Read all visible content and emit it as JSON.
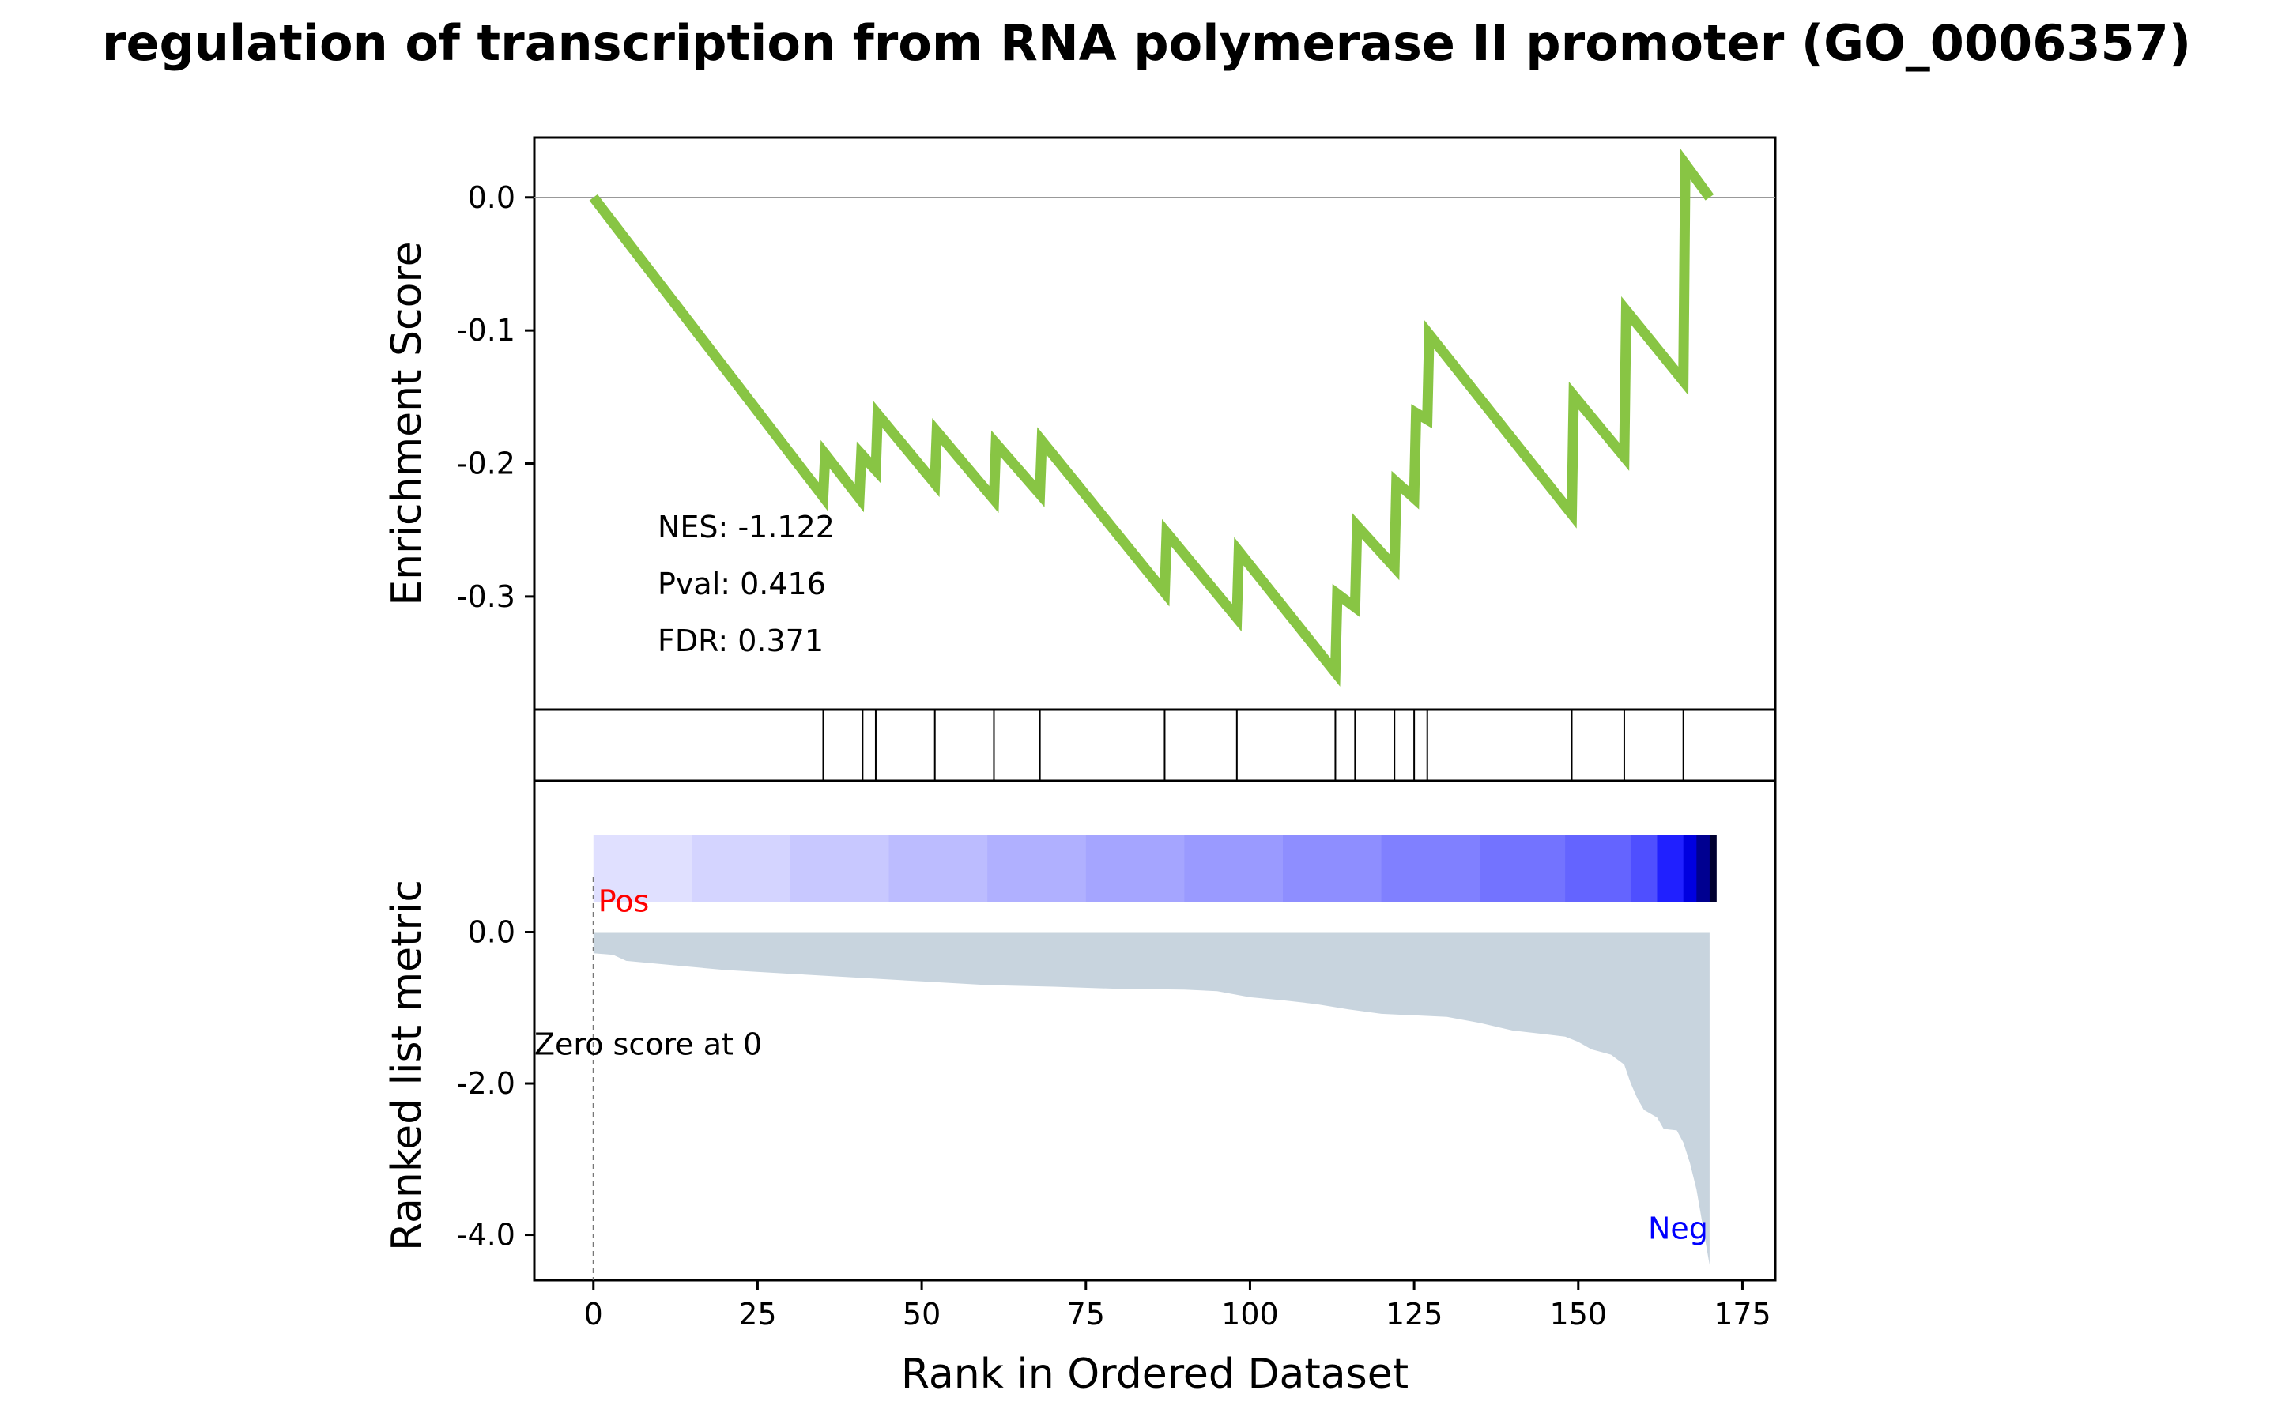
{
  "title": "regulation of transcription from RNA polymerase II promoter (GO_0006357)",
  "chart_data": [
    {
      "type": "line",
      "panel": "enrichment",
      "ylabel": "Enrichment Score",
      "ylim": [
        -0.385,
        0.045
      ],
      "yticks": [
        0.0,
        -0.1,
        -0.2,
        -0.3
      ],
      "ytick_labels": [
        "0.0",
        "-0.1",
        "-0.2",
        "-0.3"
      ],
      "zero_line": true,
      "color": "#88c544",
      "x": [
        0,
        35,
        35.3,
        40.5,
        40.8,
        43,
        43.3,
        52,
        52.3,
        61,
        61.3,
        68,
        68.3,
        87,
        87.3,
        98,
        98.3,
        113,
        113.3,
        116,
        116.3,
        122,
        122.3,
        125,
        125.3,
        127,
        127.3,
        149,
        149.3,
        157,
        157.3,
        166,
        166.3,
        170
      ],
      "y": [
        0.0,
        -0.225,
        -0.193,
        -0.226,
        -0.193,
        -0.205,
        -0.163,
        -0.215,
        -0.176,
        -0.227,
        -0.185,
        -0.223,
        -0.183,
        -0.297,
        -0.252,
        -0.316,
        -0.266,
        -0.357,
        -0.298,
        -0.308,
        -0.247,
        -0.278,
        -0.214,
        -0.226,
        -0.162,
        -0.167,
        -0.103,
        -0.238,
        -0.149,
        -0.195,
        -0.085,
        -0.138,
        0.025,
        0.0
      ],
      "annotations": [
        "NES: -1.122",
        "Pval: 0.416",
        "FDR: 0.371"
      ]
    },
    {
      "type": "hits",
      "panel": "gene-hits",
      "x": [
        35,
        41,
        43,
        52,
        61,
        68,
        87,
        98,
        113,
        116,
        122,
        125,
        127,
        149,
        157,
        166
      ]
    },
    {
      "type": "heatmap",
      "panel": "rank-colorbar",
      "x_start": 0,
      "x_end": 171,
      "colors": [
        "#e0e0ff",
        "#d4d4ff",
        "#c8c8ff",
        "#bcbcff",
        "#b0b0ff",
        "#a5a5ff",
        "#9a9aff",
        "#8e8eff",
        "#8080ff",
        "#7373ff",
        "#6464ff",
        "#4f4fff",
        "#2020ff",
        "#0000e0",
        "#000090",
        "#000030"
      ],
      "color_breaks": [
        0,
        15,
        30,
        45,
        60,
        75,
        90,
        105,
        120,
        135,
        148,
        158,
        162,
        166,
        168,
        170,
        171
      ]
    },
    {
      "type": "area",
      "panel": "ranked-metric",
      "ylabel": "Ranked list metric",
      "xlabel": "Rank in Ordered Dataset",
      "xlim": [
        -9,
        180
      ],
      "ylim": [
        -4.6,
        2.0
      ],
      "xticks": [
        0,
        25,
        50,
        75,
        100,
        125,
        150,
        175
      ],
      "xtick_labels": [
        "0",
        "25",
        "50",
        "75",
        "100",
        "125",
        "150",
        "175"
      ],
      "yticks": [
        0.0,
        -2.0,
        -4.0
      ],
      "ytick_labels": [
        "0.0",
        "-2.0",
        "-4.0"
      ],
      "color": "#c8d4de",
      "x": [
        0,
        3,
        5,
        10,
        20,
        30,
        40,
        50,
        60,
        70,
        80,
        90,
        95,
        100,
        105,
        110,
        115,
        120,
        125,
        130,
        135,
        140,
        145,
        148,
        150,
        152,
        155,
        157,
        158,
        159,
        160,
        162,
        163,
        165,
        166,
        167,
        168,
        169,
        170
      ],
      "y": [
        -0.28,
        -0.3,
        -0.38,
        -0.42,
        -0.5,
        -0.55,
        -0.6,
        -0.65,
        -0.7,
        -0.72,
        -0.75,
        -0.76,
        -0.78,
        -0.86,
        -0.9,
        -0.95,
        -1.02,
        -1.08,
        -1.1,
        -1.12,
        -1.2,
        -1.3,
        -1.35,
        -1.38,
        -1.45,
        -1.55,
        -1.62,
        -1.75,
        -2.0,
        -2.2,
        -2.35,
        -2.45,
        -2.6,
        -2.62,
        -2.78,
        -3.05,
        -3.4,
        -3.9,
        -4.4
      ],
      "zero_marker_x": 0,
      "zero_label": "Zero score at 0",
      "pos_label": "Pos",
      "neg_label": "Neg",
      "pos_color": "#ff0000",
      "neg_color": "#0000ff"
    }
  ]
}
